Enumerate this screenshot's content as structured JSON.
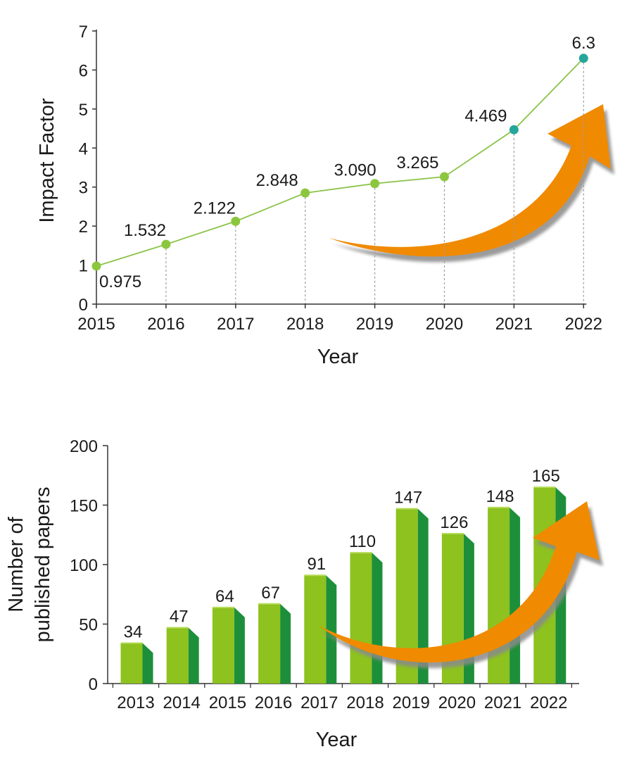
{
  "colors": {
    "line": "#8bc34a",
    "marker_green": "#8cc63f",
    "marker_teal": "#26a69a",
    "bar_front": "#8dc21f",
    "bar_side": "#1d8f3a",
    "bar_top": "#b7dc5a",
    "arrow": "#f08a00",
    "arrow_shadow": "#8a8a8a",
    "axis": "#333333",
    "dashed": "#9e9e9e"
  },
  "chart_data": [
    {
      "type": "line",
      "title": "",
      "xlabel": "Year",
      "ylabel": "Impact Factor",
      "x": [
        "2015",
        "2016",
        "2017",
        "2018",
        "2019",
        "2020",
        "2021",
        "2022"
      ],
      "values": [
        0.975,
        1.532,
        2.122,
        2.848,
        3.09,
        3.265,
        4.469,
        6.3
      ],
      "labels": [
        "0.975",
        "1.532",
        "2.122",
        "2.848",
        "3.090",
        "3.265",
        "4.469",
        "6.3"
      ],
      "marker_colors": [
        "green",
        "green",
        "green",
        "green",
        "green",
        "green",
        "teal",
        "teal"
      ],
      "yticks": [
        "0",
        "1",
        "2",
        "3",
        "4",
        "5",
        "6",
        "7"
      ],
      "ylim": [
        0,
        7
      ],
      "grid": false,
      "decoration": "orange upward arrow"
    },
    {
      "type": "bar",
      "title": "",
      "xlabel": "Year",
      "ylabel_lines": [
        "Number of",
        "published papers"
      ],
      "categories": [
        "2013",
        "2014",
        "2015",
        "2016",
        "2017",
        "2018",
        "2019",
        "2020",
        "2021",
        "2022"
      ],
      "values": [
        34,
        47,
        64,
        67,
        91,
        110,
        147,
        126,
        148,
        165
      ],
      "yticks": [
        "0",
        "50",
        "100",
        "150",
        "200"
      ],
      "ylim": [
        0,
        200
      ],
      "grid": false,
      "decoration": "orange upward arrow"
    }
  ]
}
